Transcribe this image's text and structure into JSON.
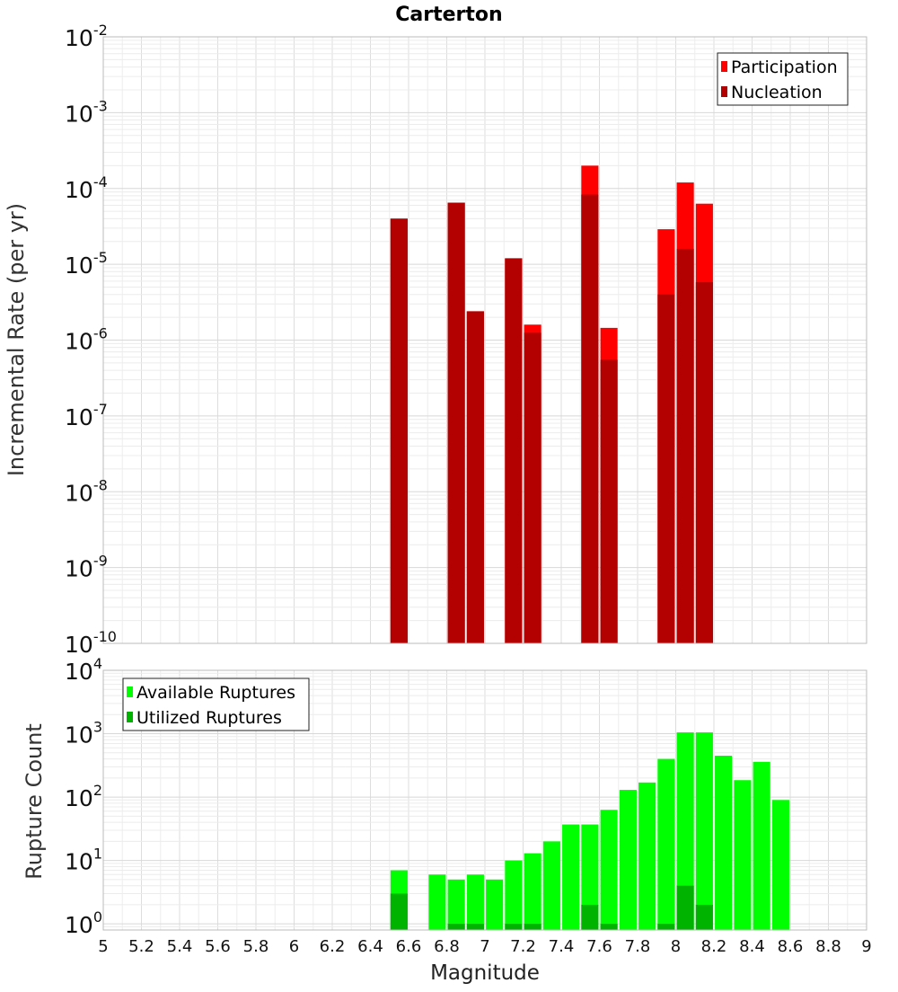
{
  "chart_data": [
    {
      "type": "bar",
      "title": "Carterton",
      "xlabel": "Magnitude",
      "ylabel": "Incremental Rate (per yr)",
      "y_scale": "log",
      "ylim": [
        1e-10,
        0.01
      ],
      "xlim": [
        5,
        9
      ],
      "y_ticks": [
        {
          "base": "10",
          "exp": "-10",
          "value": 1e-10
        },
        {
          "base": "10",
          "exp": "-9",
          "value": 1e-09
        },
        {
          "base": "10",
          "exp": "-8",
          "value": 1e-08
        },
        {
          "base": "10",
          "exp": "-7",
          "value": 1e-07
        },
        {
          "base": "10",
          "exp": "-6",
          "value": 1e-06
        },
        {
          "base": "10",
          "exp": "-5",
          "value": 1e-05
        },
        {
          "base": "10",
          "exp": "-4",
          "value": 0.0001
        },
        {
          "base": "10",
          "exp": "-3",
          "value": 0.001
        },
        {
          "base": "10",
          "exp": "-2",
          "value": 0.01
        }
      ],
      "grid": true,
      "legend_position": "top-right",
      "colors": {
        "Participation": "#ff0000",
        "Nucleation": "#b30000"
      },
      "series": [
        {
          "name": "Participation",
          "x": [
            6.55,
            6.85,
            6.95,
            7.15,
            7.25,
            7.55,
            7.65,
            7.95,
            8.05,
            8.15
          ],
          "values": [
            4e-05,
            6.5e-05,
            2.4e-06,
            1.2e-05,
            1.6e-06,
            0.0002,
            1.45e-06,
            2.9e-05,
            0.00012,
            6.3e-05
          ]
        },
        {
          "name": "Nucleation",
          "x": [
            6.55,
            6.85,
            6.95,
            7.15,
            7.25,
            7.55,
            7.65,
            7.95,
            8.05,
            8.15
          ],
          "values": [
            4e-05,
            6.5e-05,
            2.4e-06,
            1.2e-05,
            1.25e-06,
            8.3e-05,
            5.5e-07,
            4e-06,
            1.6e-05,
            5.8e-06
          ]
        }
      ]
    },
    {
      "type": "bar",
      "xlabel": "Magnitude",
      "ylabel": "Rupture Count",
      "y_scale": "log",
      "ylim": [
        0.8,
        10000
      ],
      "xlim": [
        5,
        9
      ],
      "x_ticks": [
        "5",
        "5.2",
        "5.4",
        "5.6",
        "5.8",
        "6",
        "6.2",
        "6.4",
        "6.6",
        "6.8",
        "7",
        "7.2",
        "7.4",
        "7.6",
        "7.8",
        "8",
        "8.2",
        "8.4",
        "8.6",
        "8.8",
        "9"
      ],
      "y_ticks": [
        {
          "base": "10",
          "exp": "0",
          "value": 1
        },
        {
          "base": "10",
          "exp": "1",
          "value": 10
        },
        {
          "base": "10",
          "exp": "2",
          "value": 100
        },
        {
          "base": "10",
          "exp": "3",
          "value": 1000
        },
        {
          "base": "10",
          "exp": "4",
          "value": 10000
        }
      ],
      "grid": true,
      "legend_position": "top-left",
      "colors": {
        "Available Ruptures": "#00ff00",
        "Utilized Ruptures": "#00b300"
      },
      "series": [
        {
          "name": "Available Ruptures",
          "x": [
            6.55,
            6.75,
            6.85,
            6.95,
            7.05,
            7.15,
            7.25,
            7.35,
            7.45,
            7.55,
            7.65,
            7.75,
            7.85,
            7.95,
            8.05,
            8.15,
            8.25,
            8.35,
            8.45,
            8.55
          ],
          "values": [
            7,
            6,
            5,
            6,
            5,
            10,
            13,
            20,
            37,
            37,
            63,
            130,
            170,
            400,
            1050,
            1050,
            450,
            185,
            360,
            90
          ]
        },
        {
          "name": "Utilized Ruptures",
          "x": [
            6.55,
            6.85,
            6.95,
            7.15,
            7.25,
            7.55,
            7.65,
            7.95,
            8.05,
            8.15
          ],
          "values": [
            3,
            1,
            1,
            1,
            1,
            2,
            1,
            1,
            4,
            2
          ]
        }
      ]
    }
  ]
}
